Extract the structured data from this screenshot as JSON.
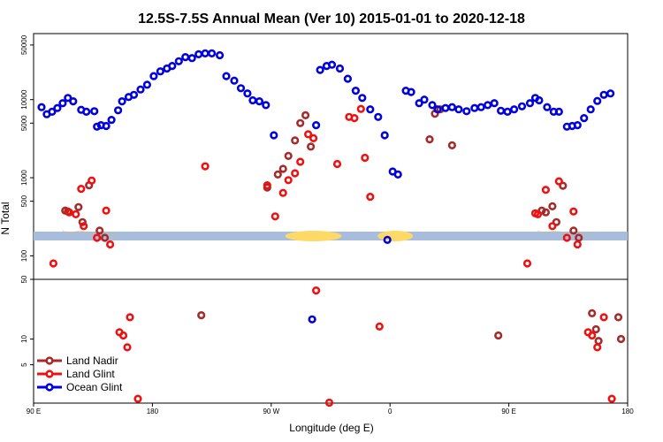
{
  "chart_data": {
    "type": "scatter",
    "title": "12.5S-7.5S Annual Mean (Ver 10)   2015-01-01 to 2020-12-18",
    "xlabel": "Longitude (deg E)",
    "ylabel": "N Total",
    "y_scale": "log",
    "ylim": [
      1,
      70000
    ],
    "grid": false,
    "legend_position": "bottom-left",
    "x_ticks": [
      {
        "x": 90,
        "label": "90 E"
      },
      {
        "x": 180,
        "label": "180"
      },
      {
        "x": 270,
        "label": "90 W"
      },
      {
        "x": 360,
        "label": "0"
      },
      {
        "x": 450,
        "label": "90 E"
      },
      {
        "x": 540,
        "label": "180"
      }
    ],
    "y_ticks": [
      {
        "v": 5,
        "label": "5"
      },
      {
        "v": 10,
        "label": "10"
      },
      {
        "v": 50,
        "label": "50"
      },
      {
        "v": 100,
        "label": "100"
      },
      {
        "v": 500,
        "label": "500"
      },
      {
        "v": 1000,
        "label": "1000"
      },
      {
        "v": 5000,
        "label": "5000"
      },
      {
        "v": 10000,
        "label": "10000"
      },
      {
        "v": 50000,
        "label": "50000"
      }
    ],
    "series": [
      {
        "name": "Land Nadir",
        "color": "#a52a2a",
        "points": [
          [
            114,
            380
          ],
          [
            116,
            370
          ],
          [
            124,
            420
          ],
          [
            127,
            270
          ],
          [
            132,
            800
          ],
          [
            140,
            210
          ],
          [
            144,
            170
          ],
          [
            217,
            19
          ],
          [
            267,
            750
          ],
          [
            275,
            1100
          ],
          [
            279,
            1300
          ],
          [
            283,
            1900
          ],
          [
            288,
            3000
          ],
          [
            292,
            5000
          ],
          [
            296,
            6300
          ],
          [
            300,
            2500
          ],
          [
            390,
            3100
          ],
          [
            394,
            6600
          ],
          [
            398,
            7500
          ],
          [
            407,
            2600
          ],
          [
            442,
            11
          ],
          [
            475,
            380
          ],
          [
            478,
            360
          ],
          [
            483,
            430
          ],
          [
            486,
            270
          ],
          [
            491,
            790
          ],
          [
            499,
            210
          ],
          [
            503,
            170
          ],
          [
            513,
            20
          ],
          [
            516,
            13
          ],
          [
            518,
            9.5
          ],
          [
            535,
            10
          ],
          [
            533,
            18
          ]
        ]
      },
      {
        "name": "Land Glint",
        "color": "#ee1111",
        "points": [
          [
            105,
            80
          ],
          [
            117,
            360
          ],
          [
            122,
            340
          ],
          [
            126,
            720
          ],
          [
            128,
            240
          ],
          [
            134,
            920
          ],
          [
            138,
            170
          ],
          [
            145,
            380
          ],
          [
            148,
            140
          ],
          [
            155,
            12
          ],
          [
            158,
            11
          ],
          [
            161,
            8
          ],
          [
            163,
            18
          ],
          [
            169,
            2
          ],
          [
            220,
            1400
          ],
          [
            267,
            800
          ],
          [
            273,
            320
          ],
          [
            279,
            640
          ],
          [
            283,
            930
          ],
          [
            288,
            1140
          ],
          [
            292,
            1600
          ],
          [
            298,
            3600
          ],
          [
            302,
            3200
          ],
          [
            304,
            37
          ],
          [
            314,
            1.8
          ],
          [
            320,
            1500
          ],
          [
            329,
            6000
          ],
          [
            333,
            5800
          ],
          [
            338,
            7600
          ],
          [
            341,
            1800
          ],
          [
            345,
            570
          ],
          [
            352,
            14
          ],
          [
            464,
            80
          ],
          [
            470,
            350
          ],
          [
            472,
            340
          ],
          [
            478,
            700
          ],
          [
            483,
            240
          ],
          [
            488,
            900
          ],
          [
            494,
            170
          ],
          [
            499,
            370
          ],
          [
            502,
            140
          ],
          [
            510,
            12
          ],
          [
            513,
            11
          ],
          [
            517,
            8
          ],
          [
            522,
            18
          ],
          [
            528,
            2
          ]
        ]
      },
      {
        "name": "Ocean Glint",
        "color": "#0000dd",
        "points": [
          [
            96,
            8000
          ],
          [
            100,
            6500
          ],
          [
            104,
            7000
          ],
          [
            108,
            7800
          ],
          [
            112,
            9000
          ],
          [
            116,
            10500
          ],
          [
            120,
            9500
          ],
          [
            126,
            7400
          ],
          [
            130,
            7000
          ],
          [
            136,
            7100
          ],
          [
            138,
            4500
          ],
          [
            141,
            4700
          ],
          [
            145,
            4600
          ],
          [
            149,
            5500
          ],
          [
            154,
            7300
          ],
          [
            157,
            9500
          ],
          [
            162,
            10800
          ],
          [
            166,
            11500
          ],
          [
            171,
            13500
          ],
          [
            176,
            15500
          ],
          [
            181,
            20000
          ],
          [
            186,
            23000
          ],
          [
            191,
            25000
          ],
          [
            195,
            27000
          ],
          [
            200,
            31000
          ],
          [
            205,
            35000
          ],
          [
            210,
            34000
          ],
          [
            215,
            38000
          ],
          [
            220,
            39000
          ],
          [
            225,
            39000
          ],
          [
            231,
            37000
          ],
          [
            236,
            20000
          ],
          [
            242,
            17500
          ],
          [
            247,
            14000
          ],
          [
            252,
            12000
          ],
          [
            256,
            9800
          ],
          [
            261,
            9500
          ],
          [
            266,
            8500
          ],
          [
            272,
            3500
          ],
          [
            301,
            17
          ],
          [
            304,
            4700
          ],
          [
            307,
            24000
          ],
          [
            312,
            27000
          ],
          [
            316,
            28000
          ],
          [
            322,
            25000
          ],
          [
            328,
            18500
          ],
          [
            334,
            13000
          ],
          [
            339,
            10500
          ],
          [
            345,
            7500
          ],
          [
            351,
            6000
          ],
          [
            356,
            3500
          ],
          [
            358,
            160
          ],
          [
            362,
            1200
          ],
          [
            366,
            1100
          ],
          [
            372,
            13000
          ],
          [
            376,
            12500
          ],
          [
            382,
            9000
          ],
          [
            386,
            10000
          ],
          [
            392,
            8500
          ],
          [
            396,
            7500
          ],
          [
            402,
            7800
          ],
          [
            407,
            8000
          ],
          [
            412,
            7500
          ],
          [
            418,
            7100
          ],
          [
            424,
            7800
          ],
          [
            429,
            8000
          ],
          [
            434,
            8500
          ],
          [
            439,
            9000
          ],
          [
            444,
            7200
          ],
          [
            449,
            7000
          ],
          [
            454,
            7500
          ],
          [
            460,
            8200
          ],
          [
            466,
            9000
          ],
          [
            470,
            10500
          ],
          [
            473,
            9800
          ],
          [
            479,
            8000
          ],
          [
            484,
            7000
          ],
          [
            488,
            7000
          ],
          [
            494,
            4500
          ],
          [
            498,
            4600
          ],
          [
            502,
            4700
          ],
          [
            507,
            5800
          ],
          [
            512,
            7500
          ],
          [
            517,
            9600
          ],
          [
            522,
            11500
          ],
          [
            527,
            12000
          ]
        ]
      }
    ]
  }
}
